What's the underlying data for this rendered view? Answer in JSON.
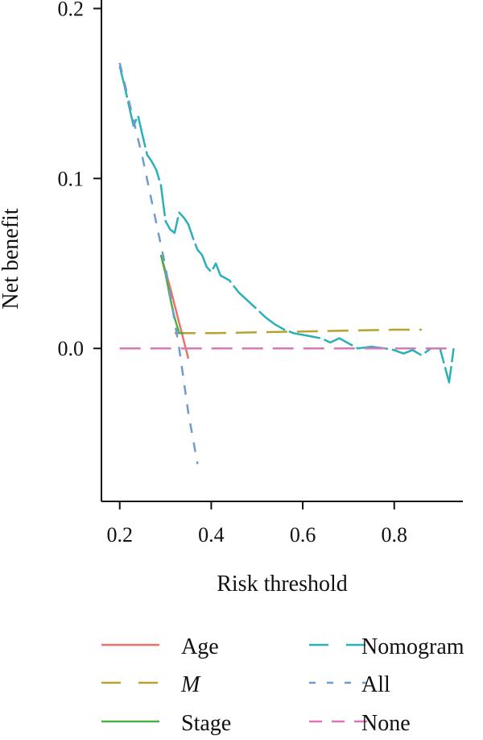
{
  "chart_data": {
    "type": "line",
    "xlabel": "Risk threshold",
    "ylabel": "Net benefit",
    "xlim": [
      0.16,
      0.95
    ],
    "ylim": [
      -0.09,
      0.205
    ],
    "xticks": [
      0.2,
      0.4,
      0.6,
      0.8
    ],
    "xtick_labels": [
      "0.2",
      "0.4",
      "0.6",
      "0.8"
    ],
    "yticks": [
      0.0,
      0.1,
      0.2
    ],
    "ytick_labels": [
      "0.0",
      "0.1",
      "0.2"
    ],
    "grid": false,
    "legend_position": "bottom",
    "series": [
      {
        "name": "Age",
        "style": "solid",
        "color": "#e8736c",
        "x": [
          0.29,
          0.31,
          0.33,
          0.35
        ],
        "y": [
          0.055,
          0.036,
          0.015,
          -0.006
        ]
      },
      {
        "name": "M",
        "italic": true,
        "style": "dashed",
        "color": "#b8a12e",
        "x": [
          0.32,
          0.4,
          0.5,
          0.6,
          0.7,
          0.8,
          0.86
        ],
        "y": [
          0.009,
          0.009,
          0.0095,
          0.01,
          0.0105,
          0.011,
          0.011
        ]
      },
      {
        "name": "Stage",
        "style": "solid",
        "color": "#4bb04b",
        "x": [
          0.29,
          0.3,
          0.31,
          0.32,
          0.33,
          0.34
        ],
        "y": [
          0.055,
          0.044,
          0.03,
          0.018,
          0.009,
          0.009
        ]
      },
      {
        "name": "Nomogram",
        "style": "dashed",
        "color": "#2ab0b8",
        "x": [
          0.2,
          0.21,
          0.22,
          0.23,
          0.24,
          0.25,
          0.26,
          0.27,
          0.28,
          0.29,
          0.3,
          0.31,
          0.32,
          0.33,
          0.34,
          0.35,
          0.36,
          0.37,
          0.38,
          0.39,
          0.4,
          0.41,
          0.42,
          0.44,
          0.46,
          0.48,
          0.5,
          0.52,
          0.54,
          0.56,
          0.58,
          0.6,
          0.62,
          0.64,
          0.66,
          0.68,
          0.7,
          0.72,
          0.75,
          0.78,
          0.8,
          0.82,
          0.84,
          0.86,
          0.88,
          0.9,
          0.92,
          0.93
        ],
        "y": [
          0.166,
          0.155,
          0.143,
          0.131,
          0.137,
          0.125,
          0.114,
          0.11,
          0.105,
          0.096,
          0.075,
          0.07,
          0.068,
          0.08,
          0.077,
          0.073,
          0.065,
          0.058,
          0.055,
          0.048,
          0.045,
          0.05,
          0.043,
          0.04,
          0.033,
          0.028,
          0.023,
          0.018,
          0.014,
          0.011,
          0.009,
          0.008,
          0.007,
          0.006,
          0.0035,
          0.006,
          0.003,
          0.0,
          0.001,
          0.0,
          -0.001,
          -0.003,
          -0.001,
          -0.004,
          0.0,
          0.0,
          -0.02,
          0.0
        ]
      },
      {
        "name": "All",
        "style": "dashed",
        "color": "#6f9bd1",
        "x": [
          0.2,
          0.25,
          0.3,
          0.33,
          0.35,
          0.37
        ],
        "y": [
          0.168,
          0.112,
          0.048,
          0.0,
          -0.038,
          -0.068
        ]
      },
      {
        "name": "None",
        "style": "dashed",
        "color": "#d978b5",
        "x": [
          0.2,
          0.93
        ],
        "y": [
          0.0,
          0.0
        ]
      }
    ]
  }
}
